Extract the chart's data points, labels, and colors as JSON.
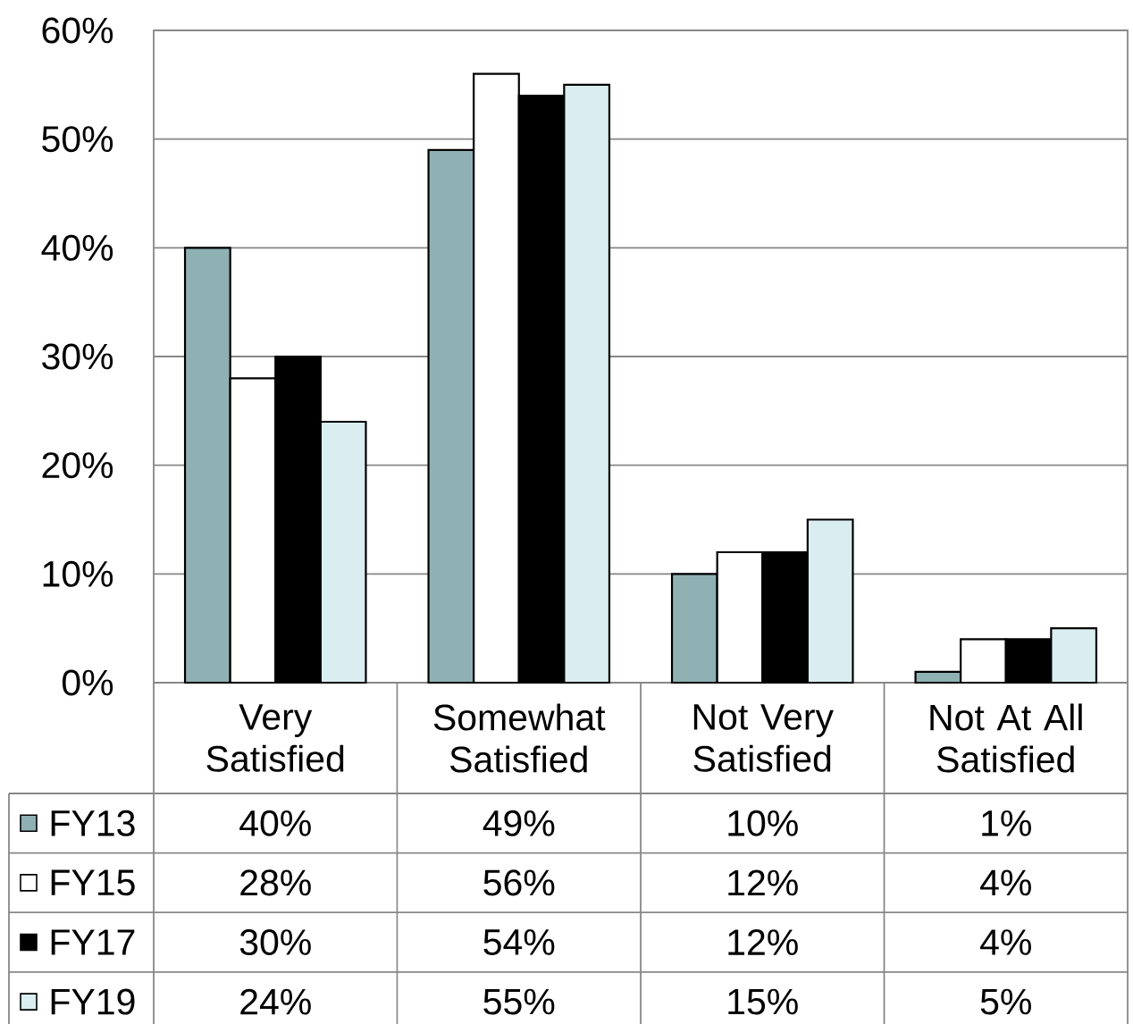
{
  "chart_data": {
    "type": "bar",
    "categories": [
      "Very Satisfied",
      "Somewhat Satisfied",
      "Not Very Satisfied",
      "Not At All Satisfied"
    ],
    "series": [
      {
        "name": "FY13",
        "color": "#8fb1b3",
        "values": [
          40,
          49,
          10,
          1
        ],
        "value_labels": [
          "40%",
          "49%",
          "10%",
          "1%"
        ]
      },
      {
        "name": "FY15",
        "color": "#ffffff",
        "values": [
          28,
          56,
          12,
          4
        ],
        "value_labels": [
          "28%",
          "56%",
          "12%",
          "4%"
        ]
      },
      {
        "name": "FY17",
        "color": "#000000",
        "values": [
          30,
          54,
          12,
          4
        ],
        "value_labels": [
          "30%",
          "54%",
          "12%",
          "4%"
        ]
      },
      {
        "name": "FY19",
        "color": "#daedf0",
        "values": [
          24,
          55,
          15,
          5
        ],
        "value_labels": [
          "24%",
          "55%",
          "15%",
          "5%"
        ]
      }
    ],
    "ylim": [
      0,
      60
    ],
    "yticks": [
      {
        "value": 0,
        "label": "0%"
      },
      {
        "value": 10,
        "label": "10%"
      },
      {
        "value": 20,
        "label": "20%"
      },
      {
        "value": 30,
        "label": "30%"
      },
      {
        "value": 40,
        "label": "40%"
      },
      {
        "value": 50,
        "label": "50%"
      },
      {
        "value": 60,
        "label": "60%"
      }
    ],
    "grid": "y",
    "legend": "bottom"
  }
}
